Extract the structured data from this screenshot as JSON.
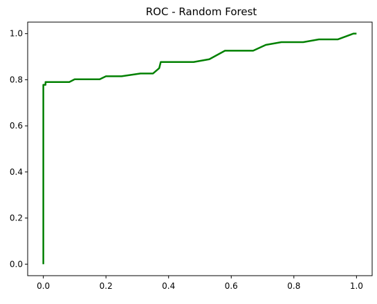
{
  "chart_data": {
    "type": "line",
    "title": "ROC - Random Forest",
    "xlabel": "",
    "ylabel": "",
    "xlim": [
      -0.05,
      1.05
    ],
    "ylim": [
      -0.05,
      1.05
    ],
    "xticks": [
      0.0,
      0.2,
      0.4,
      0.6,
      0.8,
      1.0
    ],
    "xtick_labels": [
      "0.0",
      "0.2",
      "0.4",
      "0.6",
      "0.8",
      "1.0"
    ],
    "yticks": [
      0.0,
      0.2,
      0.4,
      0.6,
      0.8,
      1.0
    ],
    "ytick_labels": [
      "0.0",
      "0.2",
      "0.4",
      "0.6",
      "0.8",
      "1.0"
    ],
    "grid": false,
    "legend": "none",
    "series": [
      {
        "color": "#008000",
        "x": [
          0.0,
          0.0,
          0.007,
          0.007,
          0.083,
          0.1,
          0.18,
          0.2,
          0.25,
          0.31,
          0.35,
          0.37,
          0.375,
          0.48,
          0.53,
          0.58,
          0.67,
          0.71,
          0.76,
          0.83,
          0.88,
          0.94,
          0.99,
          1.0
        ],
        "y": [
          0.0,
          0.778,
          0.778,
          0.79,
          0.79,
          0.802,
          0.802,
          0.815,
          0.815,
          0.827,
          0.827,
          0.85,
          0.877,
          0.877,
          0.889,
          0.926,
          0.926,
          0.951,
          0.963,
          0.963,
          0.975,
          0.975,
          1.0,
          1.0
        ]
      }
    ]
  }
}
